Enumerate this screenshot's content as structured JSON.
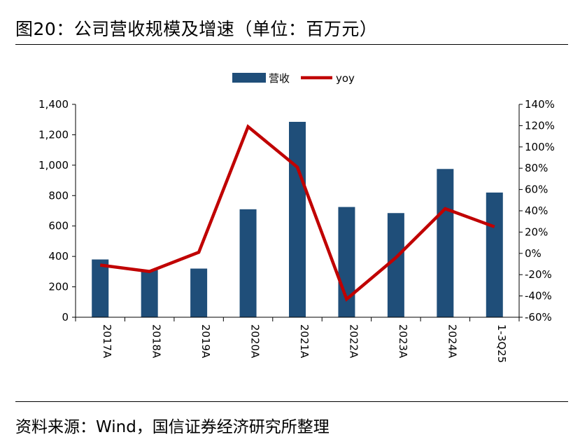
{
  "title": "图20：公司营收规模及增速（单位：百万元）",
  "source": "资料来源：Wind，国信证券经济研究所整理",
  "colors": {
    "bar": "#1f4e79",
    "line": "#c00000",
    "axis": "#000000"
  },
  "chart_data": {
    "type": "bar+line",
    "categories": [
      "2017A",
      "2018A",
      "2019A",
      "2020A",
      "2021A",
      "2022A",
      "2023A",
      "2024A",
      "1-3Q25"
    ],
    "series": [
      {
        "name": "营收",
        "type": "bar",
        "axis": "left",
        "values": [
          380,
          310,
          320,
          710,
          1285,
          725,
          685,
          975,
          820
        ]
      },
      {
        "name": "yoy",
        "type": "line",
        "axis": "right",
        "unit": "%",
        "values": [
          -11,
          -17,
          1,
          119,
          81,
          -43,
          -4,
          42,
          25
        ]
      }
    ],
    "y_left": {
      "ylim": [
        0,
        1400
      ],
      "ticks": [
        "0",
        "200",
        "400",
        "600",
        "800",
        "1,000",
        "1,200",
        "1,400"
      ]
    },
    "y_right": {
      "ylim": [
        -60,
        140
      ],
      "ticks": [
        "-60%",
        "-40%",
        "-20%",
        "0%",
        "20%",
        "40%",
        "60%",
        "80%",
        "100%",
        "120%",
        "140%"
      ]
    },
    "legend": {
      "position": "top-center"
    },
    "grid": false
  }
}
